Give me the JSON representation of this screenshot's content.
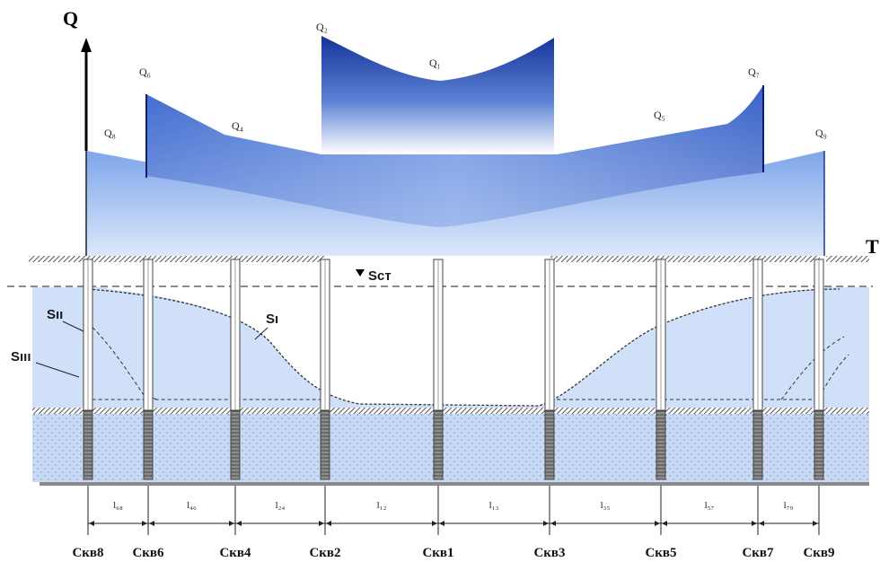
{
  "axes": {
    "y_label": "Q",
    "x_label": "T"
  },
  "static_level_label": "Sст",
  "flow_labels": [
    "Q₁",
    "Q₂",
    "Q₄",
    "Q₅",
    "Q₆",
    "Q₇",
    "Q₈",
    "Q₉"
  ],
  "curve_labels": {
    "s1": "Sı",
    "s2": "Sıı",
    "s3": "Sııı"
  },
  "wells": [
    "Скв8",
    "Скв6",
    "Скв4",
    "Скв2",
    "Скв1",
    "Скв3",
    "Скв5",
    "Скв7",
    "Скв9"
  ],
  "segments": [
    "l₆₈",
    "l₄₆",
    "l₂₄",
    "l₁₂",
    "l₁₃",
    "l₃₅",
    "l₅₇",
    "l₇₉"
  ],
  "colors": {
    "bg": "#ffffff",
    "light_blue": "#9bbcf0",
    "mid_blue": "#5b86d9",
    "dark_blue": "#17379c",
    "aquifer": "#c9daf6",
    "hatch": "#666666"
  }
}
